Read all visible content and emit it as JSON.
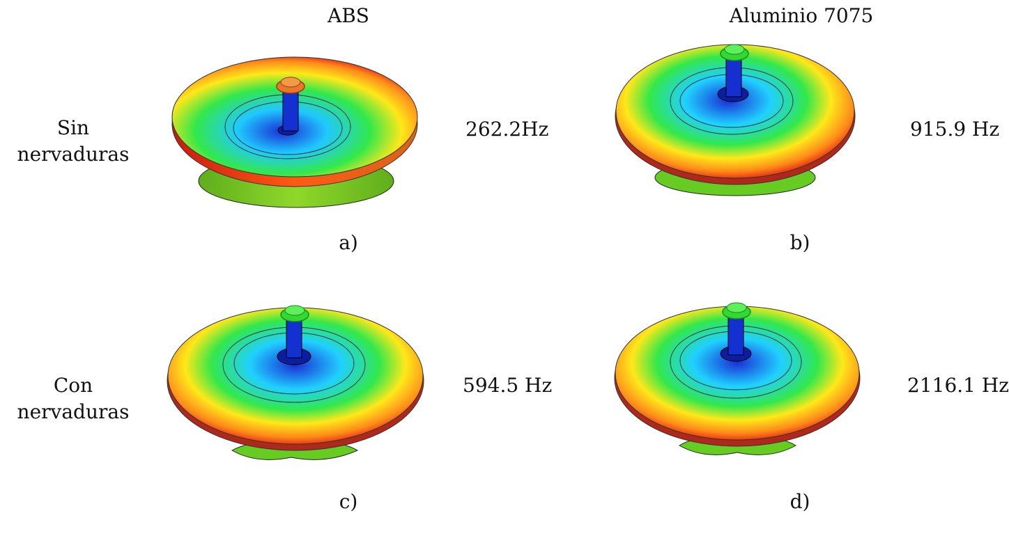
{
  "columns": {
    "abs": "ABS",
    "aluminio": "Aluminio 7075"
  },
  "rows": {
    "sin": {
      "line1": "Sin",
      "line2": "nervaduras"
    },
    "con": {
      "line1": "Con",
      "line2": "nervaduras"
    }
  },
  "panels": {
    "a": {
      "label": "a)",
      "frequency": "262.2Hz"
    },
    "b": {
      "label": "b)",
      "frequency": "915.9 Hz"
    },
    "c": {
      "label": "c)",
      "frequency": "594.5 Hz"
    },
    "d": {
      "label": "d)",
      "frequency": "2116.1 Hz"
    }
  },
  "colors": {
    "center": "#1a2fd6",
    "cyan": "#20d0ff",
    "green": "#33e84a",
    "yellow": "#ffe81a",
    "orange": "#ff8c1a",
    "red": "#e21e12",
    "rim_green": "#66cc22"
  }
}
